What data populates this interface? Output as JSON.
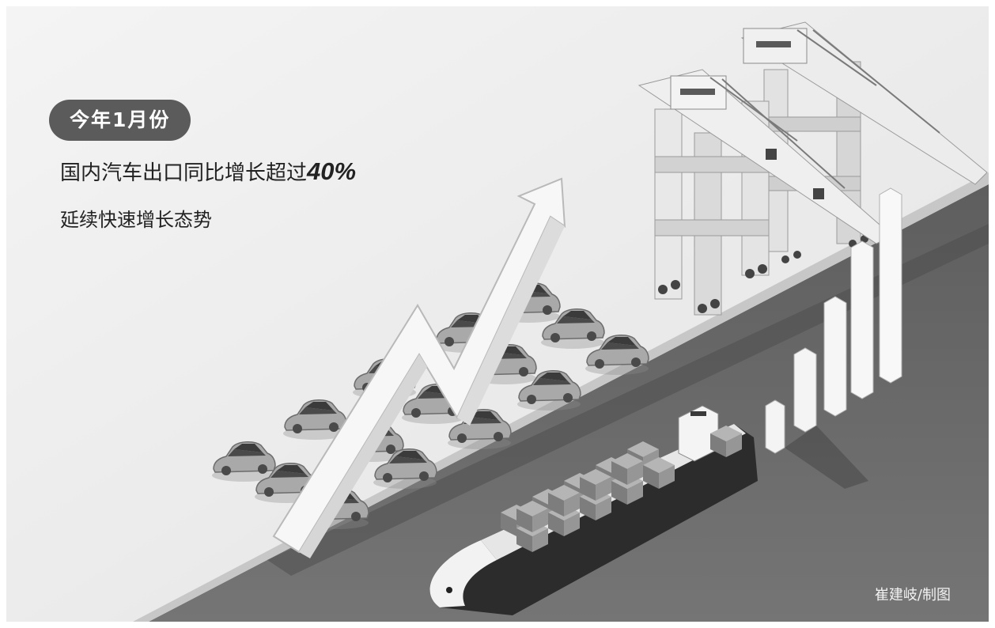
{
  "badge": {
    "label": "今年1月份"
  },
  "headline": {
    "prefix": "国内汽车出口同比增长超过",
    "percent": "40%"
  },
  "subline": {
    "text": "延续快速增长态势"
  },
  "credit": {
    "text": "崔建岐/制图"
  },
  "colors": {
    "sky": "#efefef",
    "ground": "#5c5c5c",
    "water": "#6a6a6a",
    "badge_bg": "#5b5b5b",
    "car": "#a8a8a8",
    "arrow": "#f6f6f6"
  }
}
